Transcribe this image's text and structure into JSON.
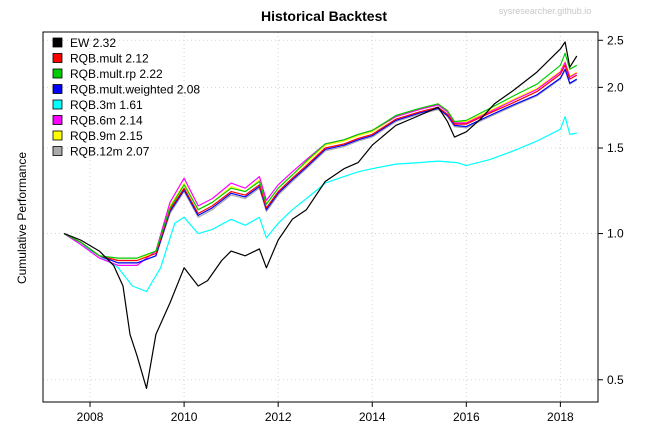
{
  "chart_data": {
    "type": "line",
    "title": "Historical Backtest",
    "watermark": "sysresearcher.github.io",
    "xlabel": "",
    "ylabel": "Cumulative Performance",
    "yscale": "log",
    "xlim": [
      2007.0,
      2018.8
    ],
    "ylim": [
      0.45,
      2.6
    ],
    "x_ticks": [
      2008,
      2010,
      2012,
      2014,
      2016,
      2018
    ],
    "x_tick_labels": [
      "2008",
      "2010",
      "2012",
      "2014",
      "2016",
      "2018"
    ],
    "y_ticks": [
      0.5,
      1.0,
      1.5,
      2.0,
      2.5
    ],
    "y_tick_labels": [
      "0.5",
      "1.0",
      "1.5",
      "2.0",
      "2.5"
    ],
    "y_axis_side": "right",
    "grid": true,
    "legend_position": "top-left",
    "series": [
      {
        "name": "EW 2.32",
        "color": "#000000",
        "x": [
          2007.45,
          2007.8,
          2008.2,
          2008.5,
          2008.7,
          2008.85,
          2009.0,
          2009.2,
          2009.4,
          2009.7,
          2010.0,
          2010.3,
          2010.5,
          2010.8,
          2011.0,
          2011.3,
          2011.6,
          2011.75,
          2012.0,
          2012.3,
          2012.6,
          2013.0,
          2013.4,
          2013.7,
          2014.0,
          2014.5,
          2015.0,
          2015.4,
          2015.6,
          2015.75,
          2016.0,
          2016.3,
          2016.6,
          2017.0,
          2017.5,
          2018.0,
          2018.1,
          2018.2,
          2018.35
        ],
        "values": [
          1.0,
          0.97,
          0.92,
          0.86,
          0.78,
          0.62,
          0.56,
          0.48,
          0.62,
          0.72,
          0.85,
          0.78,
          0.8,
          0.88,
          0.92,
          0.9,
          0.93,
          0.85,
          0.97,
          1.07,
          1.12,
          1.28,
          1.36,
          1.4,
          1.52,
          1.67,
          1.75,
          1.82,
          1.7,
          1.58,
          1.62,
          1.72,
          1.85,
          1.97,
          2.15,
          2.4,
          2.48,
          2.2,
          2.32
        ]
      },
      {
        "name": "RQB.mult 2.12",
        "color": "#ff0000",
        "x": [
          2007.45,
          2007.8,
          2008.2,
          2008.6,
          2009.0,
          2009.4,
          2009.7,
          2010.0,
          2010.3,
          2010.6,
          2011.0,
          2011.3,
          2011.6,
          2011.75,
          2012.0,
          2012.3,
          2012.6,
          2013.0,
          2013.4,
          2013.7,
          2014.0,
          2014.5,
          2015.0,
          2015.4,
          2015.6,
          2015.75,
          2016.0,
          2016.5,
          2017.0,
          2017.5,
          2018.0,
          2018.1,
          2018.2,
          2018.35
        ],
        "values": [
          1.0,
          0.96,
          0.9,
          0.88,
          0.88,
          0.91,
          1.12,
          1.24,
          1.1,
          1.14,
          1.22,
          1.2,
          1.26,
          1.13,
          1.22,
          1.3,
          1.38,
          1.5,
          1.53,
          1.57,
          1.6,
          1.72,
          1.78,
          1.82,
          1.76,
          1.68,
          1.68,
          1.77,
          1.86,
          1.96,
          2.13,
          2.22,
          2.08,
          2.12
        ]
      },
      {
        "name": "RQB.mult.rp 2.22",
        "color": "#00cc00",
        "x": [
          2007.45,
          2007.8,
          2008.2,
          2008.6,
          2009.0,
          2009.4,
          2009.7,
          2010.0,
          2010.3,
          2010.6,
          2011.0,
          2011.3,
          2011.6,
          2011.75,
          2012.0,
          2012.3,
          2012.6,
          2013.0,
          2013.4,
          2013.7,
          2014.0,
          2014.5,
          2015.0,
          2015.4,
          2015.6,
          2015.75,
          2016.0,
          2016.5,
          2017.0,
          2017.5,
          2018.0,
          2018.1,
          2018.2,
          2018.35
        ],
        "values": [
          1.0,
          0.96,
          0.9,
          0.89,
          0.89,
          0.92,
          1.13,
          1.26,
          1.12,
          1.16,
          1.24,
          1.22,
          1.28,
          1.15,
          1.24,
          1.32,
          1.41,
          1.53,
          1.56,
          1.6,
          1.63,
          1.75,
          1.81,
          1.85,
          1.79,
          1.7,
          1.71,
          1.81,
          1.92,
          2.03,
          2.22,
          2.35,
          2.18,
          2.22
        ]
      },
      {
        "name": "RQB.mult.weighted 2.08",
        "color": "#0000ff",
        "x": [
          2007.45,
          2007.8,
          2008.2,
          2008.6,
          2009.0,
          2009.4,
          2009.7,
          2010.0,
          2010.3,
          2010.6,
          2011.0,
          2011.3,
          2011.6,
          2011.75,
          2012.0,
          2012.3,
          2012.6,
          2013.0,
          2013.4,
          2013.7,
          2014.0,
          2014.5,
          2015.0,
          2015.4,
          2015.6,
          2015.75,
          2016.0,
          2016.5,
          2017.0,
          2017.5,
          2018.0,
          2018.1,
          2018.2,
          2018.35
        ],
        "values": [
          1.0,
          0.96,
          0.9,
          0.87,
          0.87,
          0.9,
          1.11,
          1.23,
          1.09,
          1.13,
          1.21,
          1.19,
          1.25,
          1.12,
          1.21,
          1.29,
          1.37,
          1.49,
          1.52,
          1.56,
          1.59,
          1.71,
          1.77,
          1.81,
          1.75,
          1.67,
          1.66,
          1.75,
          1.84,
          1.93,
          2.09,
          2.18,
          2.04,
          2.08
        ]
      },
      {
        "name": "RQB.3m 1.61",
        "color": "#00ffff",
        "x": [
          2007.45,
          2007.8,
          2008.2,
          2008.6,
          2008.9,
          2009.2,
          2009.5,
          2009.8,
          2010.0,
          2010.3,
          2010.6,
          2011.0,
          2011.3,
          2011.6,
          2011.75,
          2012.0,
          2012.3,
          2012.6,
          2013.0,
          2013.4,
          2013.7,
          2014.0,
          2014.5,
          2015.0,
          2015.4,
          2015.8,
          2016.0,
          2016.5,
          2017.0,
          2017.5,
          2018.0,
          2018.1,
          2018.2,
          2018.35
        ],
        "values": [
          1.0,
          0.95,
          0.9,
          0.85,
          0.78,
          0.76,
          0.85,
          1.05,
          1.08,
          1.0,
          1.02,
          1.07,
          1.04,
          1.08,
          0.98,
          1.05,
          1.12,
          1.18,
          1.27,
          1.31,
          1.34,
          1.36,
          1.39,
          1.4,
          1.41,
          1.4,
          1.38,
          1.42,
          1.48,
          1.55,
          1.64,
          1.74,
          1.6,
          1.61
        ]
      },
      {
        "name": "RQB.6m 2.14",
        "color": "#ff00ff",
        "x": [
          2007.45,
          2007.8,
          2008.2,
          2008.6,
          2009.0,
          2009.4,
          2009.7,
          2010.0,
          2010.3,
          2010.6,
          2011.0,
          2011.3,
          2011.6,
          2011.75,
          2012.0,
          2012.3,
          2012.6,
          2013.0,
          2013.4,
          2013.7,
          2014.0,
          2014.5,
          2015.0,
          2015.4,
          2015.6,
          2015.75,
          2016.0,
          2016.5,
          2017.0,
          2017.5,
          2018.0,
          2018.1,
          2018.2,
          2018.35
        ],
        "values": [
          1.0,
          0.95,
          0.89,
          0.86,
          0.86,
          0.92,
          1.16,
          1.3,
          1.14,
          1.18,
          1.27,
          1.24,
          1.31,
          1.17,
          1.26,
          1.34,
          1.42,
          1.53,
          1.56,
          1.6,
          1.63,
          1.74,
          1.8,
          1.84,
          1.78,
          1.69,
          1.69,
          1.78,
          1.88,
          1.98,
          2.15,
          2.25,
          2.1,
          2.14
        ]
      },
      {
        "name": "RQB.9m 2.15",
        "color": "#ffff00",
        "x": [
          2007.45,
          2007.8,
          2008.2,
          2008.6,
          2009.0,
          2009.4,
          2009.7,
          2010.0,
          2010.3,
          2010.6,
          2011.0,
          2011.3,
          2011.6,
          2011.75,
          2012.0,
          2012.3,
          2012.6,
          2013.0,
          2013.4,
          2013.7,
          2014.0,
          2014.5,
          2015.0,
          2015.4,
          2015.6,
          2015.75,
          2016.0,
          2016.5,
          2017.0,
          2017.5,
          2018.0,
          2018.1,
          2018.2,
          2018.35
        ],
        "values": [
          1.0,
          0.96,
          0.9,
          0.88,
          0.88,
          0.92,
          1.14,
          1.27,
          1.12,
          1.16,
          1.25,
          1.22,
          1.29,
          1.15,
          1.24,
          1.32,
          1.4,
          1.52,
          1.55,
          1.59,
          1.62,
          1.74,
          1.8,
          1.85,
          1.79,
          1.7,
          1.7,
          1.79,
          1.89,
          1.99,
          2.16,
          2.26,
          2.11,
          2.15
        ]
      },
      {
        "name": "RQB.12m 2.07",
        "color": "#aaaaaa",
        "x": [
          2007.45,
          2007.8,
          2008.2,
          2008.6,
          2009.0,
          2009.4,
          2009.7,
          2010.0,
          2010.3,
          2010.6,
          2011.0,
          2011.3,
          2011.6,
          2011.75,
          2012.0,
          2012.3,
          2012.6,
          2013.0,
          2013.4,
          2013.7,
          2014.0,
          2014.5,
          2015.0,
          2015.4,
          2015.6,
          2015.75,
          2016.0,
          2016.5,
          2017.0,
          2017.5,
          2018.0,
          2018.1,
          2018.2,
          2018.35
        ],
        "values": [
          1.0,
          0.96,
          0.9,
          0.87,
          0.87,
          0.9,
          1.1,
          1.22,
          1.08,
          1.12,
          1.2,
          1.18,
          1.24,
          1.11,
          1.2,
          1.28,
          1.36,
          1.48,
          1.51,
          1.55,
          1.58,
          1.7,
          1.76,
          1.8,
          1.74,
          1.66,
          1.65,
          1.74,
          1.83,
          1.92,
          2.08,
          2.17,
          2.03,
          2.07
        ]
      }
    ]
  }
}
